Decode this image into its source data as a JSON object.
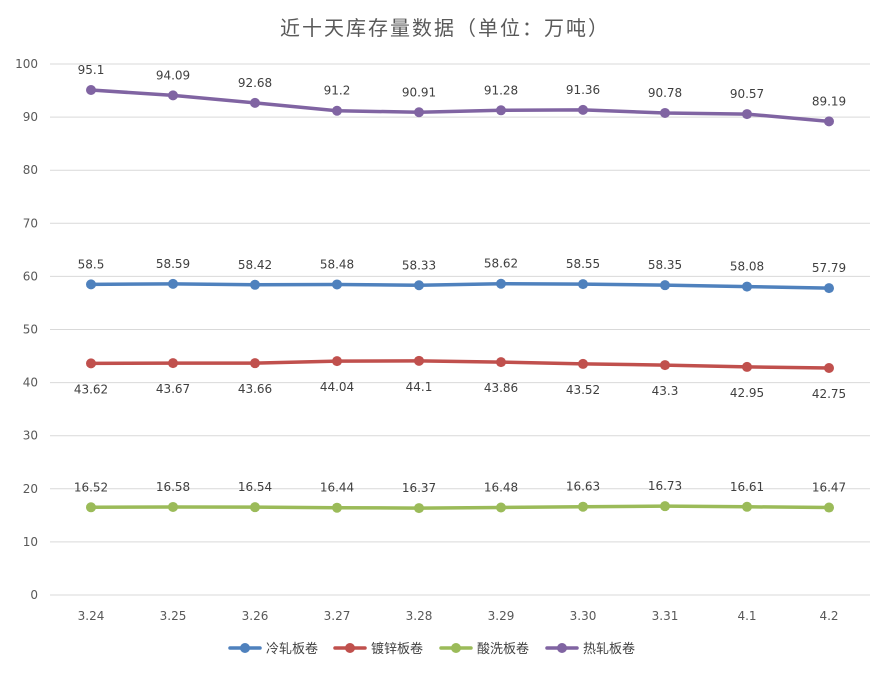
{
  "chart_data": {
    "type": "line",
    "title": "近十天库存量数据（单位：万吨）",
    "categories": [
      "3.24",
      "3.25",
      "3.26",
      "3.27",
      "3.28",
      "3.29",
      "3.30",
      "3.31",
      "4.1",
      "4.2"
    ],
    "ylim": [
      0,
      100
    ],
    "yticks": [
      0,
      10,
      20,
      30,
      40,
      50,
      60,
      70,
      80,
      90,
      100
    ],
    "grid": true,
    "legend_position": "bottom",
    "series": [
      {
        "name": "冷轧板卷",
        "color": "#4f81bd",
        "values": [
          58.5,
          58.59,
          58.42,
          58.48,
          58.33,
          58.62,
          58.55,
          58.35,
          58.08,
          57.79
        ],
        "labels": [
          "58.5",
          "58.59",
          "58.42",
          "58.48",
          "58.33",
          "58.62",
          "58.55",
          "58.35",
          "58.08",
          "57.79"
        ],
        "label_position": "above"
      },
      {
        "name": "镀锌板卷",
        "color": "#c0504d",
        "values": [
          43.62,
          43.67,
          43.66,
          44.04,
          44.1,
          43.86,
          43.52,
          43.3,
          42.95,
          42.75
        ],
        "labels": [
          "43.62",
          "43.67",
          "43.66",
          "44.04",
          "44.1",
          "43.86",
          "43.52",
          "43.3",
          "42.95",
          "42.75"
        ],
        "label_position": "below"
      },
      {
        "name": "酸洗板卷",
        "color": "#9bbb59",
        "values": [
          16.52,
          16.58,
          16.54,
          16.44,
          16.37,
          16.48,
          16.63,
          16.73,
          16.61,
          16.47
        ],
        "labels": [
          "16.52",
          "16.58",
          "16.54",
          "16.44",
          "16.37",
          "16.48",
          "16.63",
          "16.73",
          "16.61",
          "16.47"
        ],
        "label_position": "above"
      },
      {
        "name": "热轧板卷",
        "color": "#8064a2",
        "values": [
          95.1,
          94.09,
          92.68,
          91.2,
          90.91,
          91.28,
          91.36,
          90.78,
          90.57,
          89.19
        ],
        "labels": [
          "95.1",
          "94.09",
          "92.68",
          "91.2",
          "90.91",
          "91.28",
          "91.36",
          "90.78",
          "90.57",
          "89.19"
        ],
        "label_position": "above"
      }
    ]
  }
}
